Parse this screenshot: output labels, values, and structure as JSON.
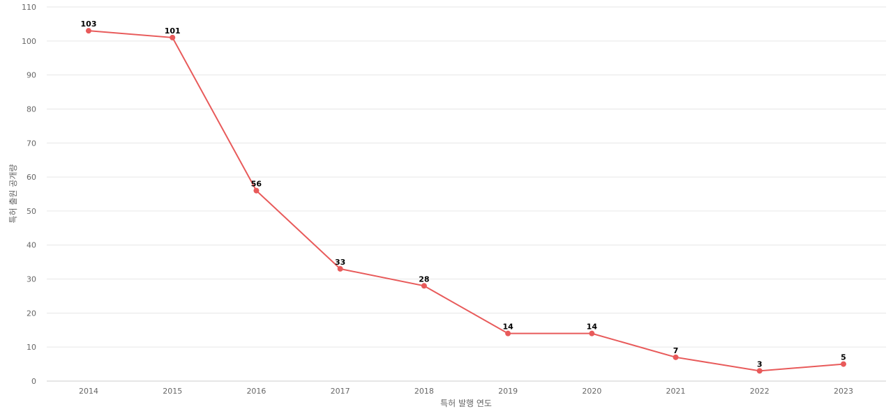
{
  "chart_data": {
    "type": "line",
    "categories": [
      "2014",
      "2015",
      "2016",
      "2017",
      "2018",
      "2019",
      "2020",
      "2021",
      "2022",
      "2023"
    ],
    "series": [
      {
        "values": [
          103,
          101,
          56,
          33,
          28,
          14,
          14,
          7,
          3,
          5
        ],
        "color": "#e85a5a"
      }
    ],
    "xlabel": "특허 발행 연도",
    "ylabel": "특허 출원 공개량",
    "ylim": [
      0,
      110
    ],
    "yticks": [
      0,
      10,
      20,
      30,
      40,
      50,
      60,
      70,
      80,
      90,
      100,
      110
    ],
    "grid": true,
    "data_labels": true
  }
}
